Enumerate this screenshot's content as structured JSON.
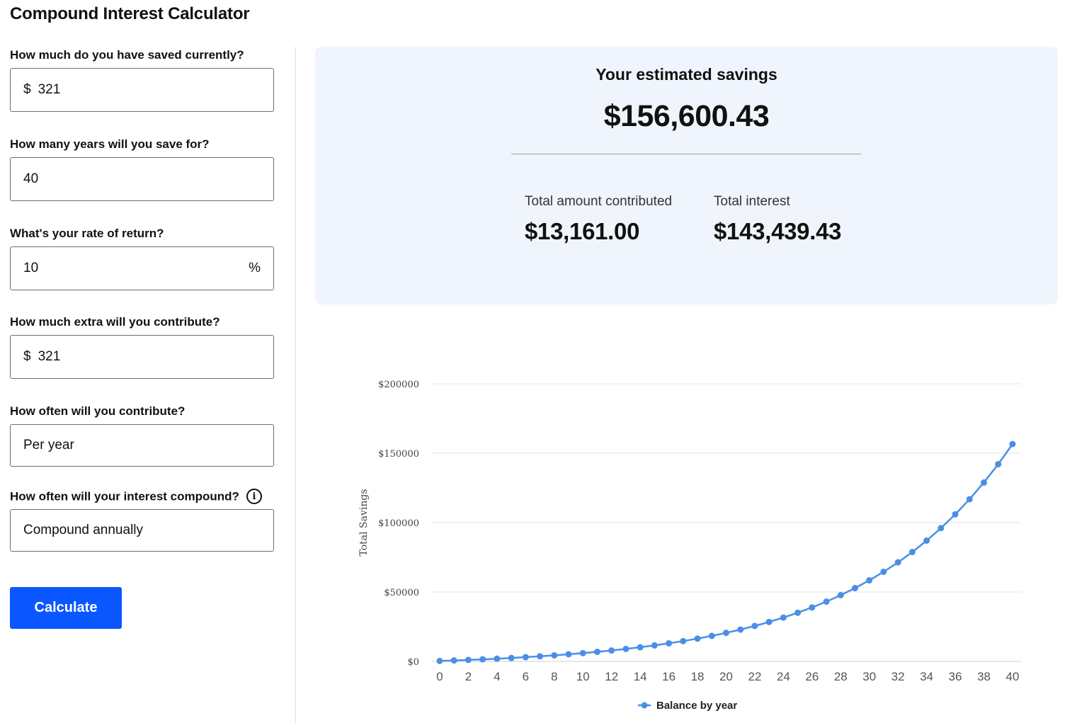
{
  "page": {
    "title": "Compound Interest Calculator"
  },
  "form": {
    "current_savings": {
      "label": "How much do you have saved currently?",
      "prefix": "$",
      "value": "321"
    },
    "years": {
      "label": "How many years will you save for?",
      "value": "40"
    },
    "rate": {
      "label": "What's your rate of return?",
      "value": "10",
      "suffix": "%"
    },
    "extra_contribution": {
      "label": "How much extra will you contribute?",
      "prefix": "$",
      "value": "321"
    },
    "contribution_frequency": {
      "label": "How often will you contribute?",
      "value": "Per year"
    },
    "compound_frequency": {
      "label": "How often will your interest compound?",
      "info_icon": "i",
      "value": "Compound annually"
    },
    "calculate_label": "Calculate"
  },
  "summary": {
    "heading": "Your estimated savings",
    "total": "$156,600.43",
    "contributed_label": "Total amount contributed",
    "contributed_value": "$13,161.00",
    "interest_label": "Total interest",
    "interest_value": "$143,439.43",
    "bg_color": "#f0f5fd"
  },
  "chart_data": {
    "type": "line",
    "ylabel": "Total Savings",
    "xlabel": "",
    "ylim": [
      0,
      200000
    ],
    "y_ticks": [
      "$0",
      "$50000",
      "$100000",
      "$150000",
      "$200000"
    ],
    "y_tick_values": [
      0,
      50000,
      100000,
      150000,
      200000
    ],
    "x_ticks": [
      0,
      2,
      4,
      6,
      8,
      10,
      12,
      14,
      16,
      18,
      20,
      22,
      24,
      26,
      28,
      30,
      32,
      34,
      36,
      38,
      40
    ],
    "xlim": [
      0,
      40
    ],
    "legend_position": "bottom",
    "grid": true,
    "series": [
      {
        "name": "Balance by year",
        "color": "#4a8fe7",
        "x": [
          0,
          1,
          2,
          3,
          4,
          5,
          6,
          7,
          8,
          9,
          10,
          11,
          12,
          13,
          14,
          15,
          16,
          17,
          18,
          19,
          20,
          21,
          22,
          23,
          24,
          25,
          26,
          27,
          28,
          29,
          30,
          31,
          32,
          33,
          34,
          35,
          36,
          37,
          38,
          39,
          40
        ],
        "values": [
          321,
          674,
          1063,
          1490,
          1960,
          2477,
          3046,
          3671,
          4359,
          5116,
          5948,
          6864,
          7871,
          8979,
          10198,
          11539,
          13014,
          14636,
          16421,
          18384,
          20543,
          22919,
          25532,
          28406,
          31568,
          35045,
          38871,
          43079,
          47708,
          52800,
          58401,
          64562,
          71340,
          78795,
          86995,
          96016,
          105938,
          116853,
          128860,
          142067,
          156600
        ]
      }
    ]
  }
}
